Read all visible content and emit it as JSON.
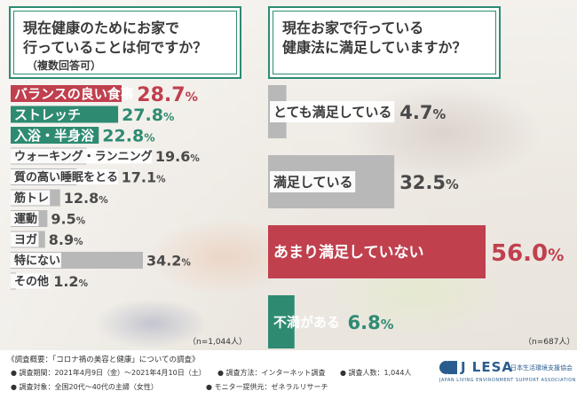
{
  "question_left": {
    "text": "現在健康のためにお家で\n行っていることは何ですか？",
    "sub": "（複数回答可）"
  },
  "question_right": {
    "text": "現在お家で行っている\n健康法に満足していますか？"
  },
  "colors": {
    "red": "#c0404e",
    "green": "#2e8b72",
    "grey_bar": "#b8b8b8",
    "label_bg": "#ffffff"
  },
  "chart_data": [
    {
      "type": "bar",
      "orientation": "horizontal",
      "categories": [
        "バランスの良い食事",
        "ストレッチ",
        "入浴・半身浴",
        "ウォーキング・ランニング",
        "質の高い睡眠をとる",
        "筋トレ",
        "運動",
        "ヨガ",
        "特にない",
        "その他"
      ],
      "values": [
        28.7,
        27.8,
        22.8,
        19.6,
        17.1,
        12.8,
        9.5,
        8.9,
        34.2,
        1.2
      ],
      "value_labels": [
        "28.7%",
        "27.8%",
        "22.8%",
        "19.6%",
        "17.1%",
        "12.8%",
        "9.5%",
        "8.9%",
        "34.2%",
        "1.2%"
      ],
      "highlight": [
        "red",
        "green",
        "green",
        "grey",
        "grey",
        "grey",
        "grey",
        "grey",
        "grey",
        "grey"
      ],
      "note": "（n=1,044人）"
    },
    {
      "type": "bar",
      "orientation": "horizontal",
      "categories": [
        "とても満足している",
        "満足している",
        "あまり満足していない",
        "不満がある"
      ],
      "values": [
        4.7,
        32.5,
        56.0,
        6.8
      ],
      "value_labels": [
        "4.7%",
        "32.5%",
        "56.0%",
        "6.8%"
      ],
      "highlight": [
        "grey",
        "grey",
        "red",
        "green"
      ],
      "note": "（n=687人）"
    }
  ],
  "footer": {
    "overview": "《調査概要：「コロナ禍の美容と健康」についての調査》",
    "period": "● 調査期間：2021年4月9日（金）〜2021年4月10日（土）",
    "method": "● 調査方法：インターネット調査",
    "count": "● 調査人数：1,044人",
    "target": "● 調査対象：全国20代〜40代の主婦（女性）",
    "provider": "● モニター提供元：ゼネラルリサーチ",
    "logo_text": "J LESA",
    "logo_jp": "日本生活環境支援協会",
    "logo_en": "JAPAN LIVING ENVIRONMENT SUPPORT ASSOCIATION"
  }
}
